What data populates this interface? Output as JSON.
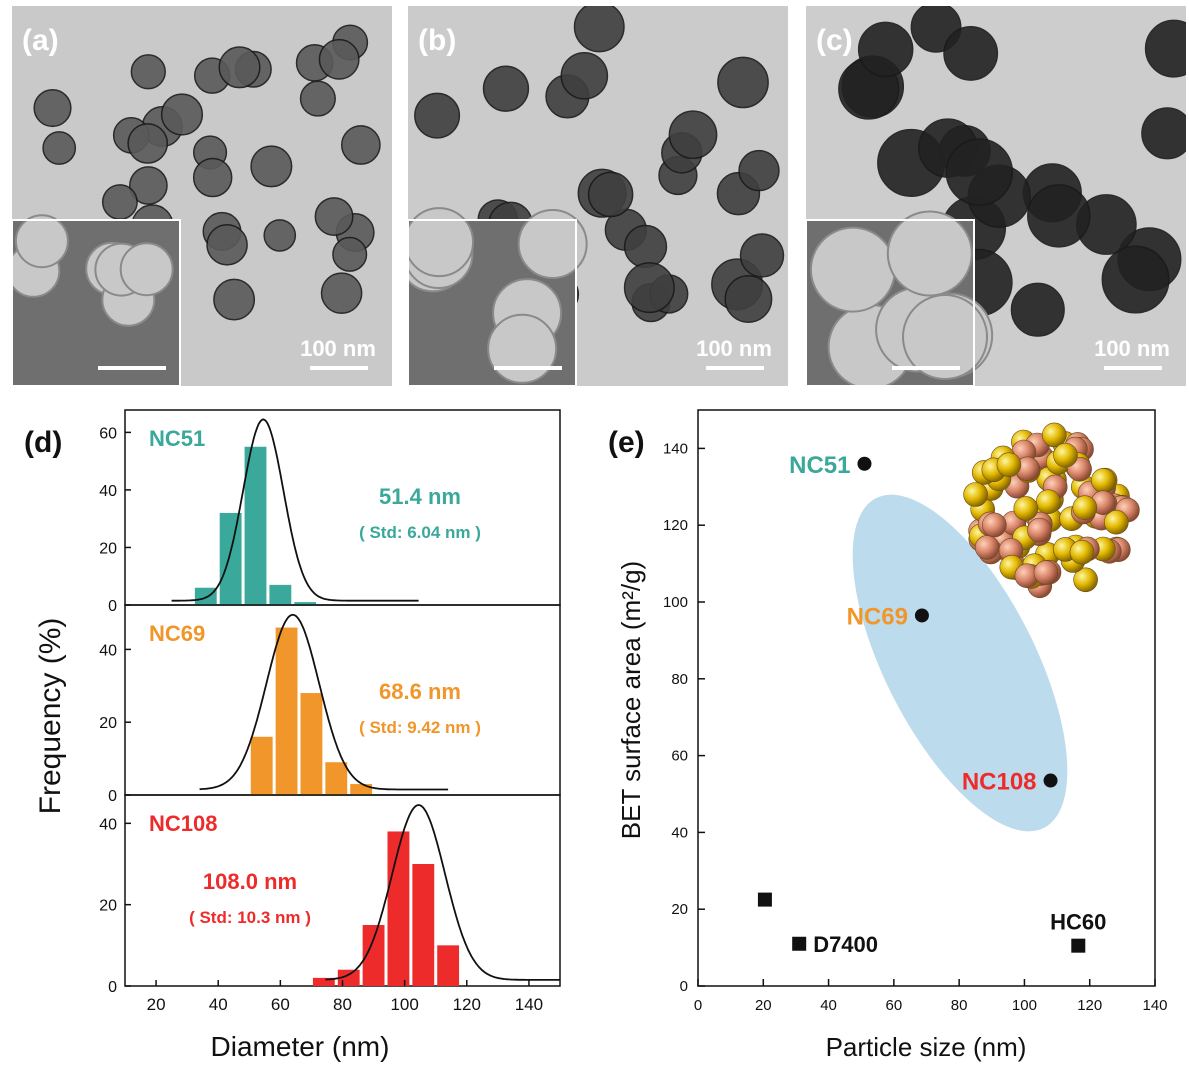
{
  "tem_panels": [
    {
      "label": "(a)",
      "scale_text": "100 nm"
    },
    {
      "label": "(b)",
      "scale_text": "100 nm"
    },
    {
      "label": "(c)",
      "scale_text": "100 nm"
    }
  ],
  "colors": {
    "nc51": "#3aa89a",
    "nc69": "#f0962a",
    "nc108": "#ee2b2b",
    "ellipse": "#bcdcee",
    "black": "#111111"
  },
  "chart_data": [
    {
      "type": "bar",
      "panel_label": "(d)",
      "xlabel": "Diameter  (nm)",
      "ylabel": "Frequency (%)",
      "xlim": [
        10,
        150
      ],
      "xticks": [
        "20",
        "40",
        "60",
        "80",
        "100",
        "120",
        "140"
      ],
      "bin_width": 8,
      "series": [
        {
          "name": "NC51",
          "mean_text": "51.4 nm",
          "std_text": "( Std: 6.04 nm )",
          "ylim": [
            0,
            65
          ],
          "yticks": [
            "0",
            "20",
            "40",
            "60"
          ],
          "bins": [
            36,
            44,
            52,
            60,
            68,
            76
          ],
          "values": [
            6,
            32,
            55,
            7,
            1,
            0
          ],
          "fit_mean": 54.5,
          "fit_std": 6.5,
          "fit_peak": 63
        },
        {
          "name": "NC69",
          "mean_text": "68.6 nm",
          "std_text": "( Std: 9.42 nm )",
          "ylim": [
            0,
            50
          ],
          "yticks": [
            "0",
            "20",
            "40"
          ],
          "bins": [
            54,
            62,
            70,
            78,
            86,
            94
          ],
          "values": [
            16,
            46,
            28,
            9,
            3,
            0
          ],
          "fit_mean": 64,
          "fit_std": 8.5,
          "fit_peak": 48
        },
        {
          "name": "NC108",
          "mean_text": "108.0 nm",
          "std_text": "( Std: 10.3 nm )",
          "ylim": [
            0,
            45
          ],
          "yticks": [
            "0",
            "20",
            "40"
          ],
          "bins": [
            74,
            82,
            90,
            98,
            106,
            114,
            122
          ],
          "values": [
            2,
            4,
            15,
            38,
            30,
            10,
            0
          ],
          "fit_mean": 104.5,
          "fit_std": 8.5,
          "fit_peak": 43
        }
      ]
    },
    {
      "type": "scatter",
      "panel_label": "(e)",
      "xlabel": "Particle size (nm)",
      "ylabel": "BET surface area (m²/g)",
      "xlim": [
        0,
        140
      ],
      "ylim": [
        0,
        150
      ],
      "xticks": [
        "0",
        "20",
        "40",
        "60",
        "80",
        "100",
        "120",
        "140"
      ],
      "yticks": [
        "0",
        "20",
        "40",
        "60",
        "80",
        "100",
        "120",
        "140"
      ],
      "points": [
        {
          "label": "NC51",
          "x": 51,
          "y": 136,
          "marker": "circle"
        },
        {
          "label": "NC69",
          "x": 68.6,
          "y": 96.5,
          "marker": "circle"
        },
        {
          "label": "NC108",
          "x": 108,
          "y": 53.5,
          "marker": "circle"
        },
        {
          "label": "",
          "x": 20.5,
          "y": 22.5,
          "marker": "square"
        },
        {
          "label": "D7400",
          "x": 31,
          "y": 11,
          "marker": "square"
        },
        {
          "label": "HC60",
          "x": 116.5,
          "y": 10.5,
          "marker": "square"
        }
      ]
    }
  ]
}
